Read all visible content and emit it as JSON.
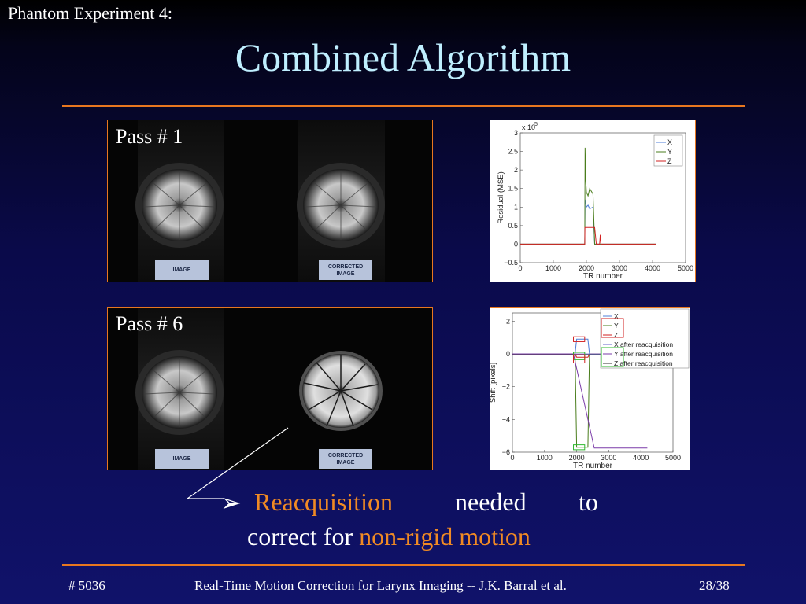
{
  "slide": {
    "subtitle": "Phantom Experiment 4:",
    "title": "Combined Algorithm",
    "page": "28/38",
    "id": "# 5036",
    "footer": "Real-Time Motion Correction for Larynx Imaging -- J.K. Barral et al."
  },
  "panels": [
    {
      "label": "Pass # 1",
      "tag_left": "IMAGE",
      "tag_right_1": "CORRECTED",
      "tag_right_2": "IMAGE"
    },
    {
      "label": "Pass # 6",
      "tag_left": "IMAGE",
      "tag_right_1": "CORRECTED",
      "tag_right_2": "IMAGE"
    }
  ],
  "bullet": {
    "arrow": "➢",
    "highlight1": "Reacquisition",
    "w1": "needed",
    "w2": "to",
    "line2_prefix": "correct for ",
    "highlight2": "non-rigid motion"
  },
  "chart_data": [
    {
      "type": "line",
      "xlabel": "TR number",
      "ylabel": "Residual (MSE)",
      "y_multiplier": "x 10",
      "y_exponent": "5",
      "xlim": [
        0,
        5000
      ],
      "ylim": [
        -0.5,
        3
      ],
      "x_ticks": [
        "0",
        "1000",
        "2000",
        "3000",
        "4000",
        "5000"
      ],
      "y_ticks": [
        "−0.5",
        "0",
        "0.5",
        "1",
        "1.5",
        "2",
        "2.5",
        "3"
      ],
      "legend": [
        "X",
        "Y",
        "Z"
      ],
      "legend_position": "top-right",
      "series": [
        {
          "name": "X",
          "color": "#4f7fd8",
          "x": [
            0,
            1950,
            1960,
            2000,
            2050,
            2100,
            2200,
            2250,
            2300,
            4100
          ],
          "y": [
            0,
            0,
            1.2,
            1.0,
            1.05,
            0.95,
            1.0,
            0,
            0,
            0
          ]
        },
        {
          "name": "Y",
          "color": "#4a7d1c",
          "x": [
            0,
            1950,
            1960,
            1980,
            2000,
            2050,
            2100,
            2200,
            2250,
            2300,
            4100
          ],
          "y": [
            0,
            0,
            2.6,
            1.7,
            1.4,
            1.3,
            1.5,
            1.35,
            0,
            0,
            0
          ]
        },
        {
          "name": "Z",
          "color": "#d22222",
          "x": [
            0,
            1950,
            1955,
            2250,
            2300,
            2400,
            2420,
            2440,
            4100
          ],
          "y": [
            0,
            0,
            0.45,
            0.45,
            0,
            0,
            0.25,
            0,
            0
          ]
        }
      ]
    },
    {
      "type": "line",
      "xlabel": "TR number",
      "ylabel": "Shift [pixels]",
      "xlim": [
        0,
        5000
      ],
      "ylim": [
        -6,
        2.5
      ],
      "x_ticks": [
        "0",
        "1000",
        "2000",
        "3000",
        "4000",
        "5000"
      ],
      "y_ticks": [
        "−6",
        "−4",
        "−2",
        "0",
        "2"
      ],
      "legend": [
        "X",
        "Y",
        "Z",
        "X after reacquisition",
        "Y after reacquisition",
        "Z after reacquisition"
      ],
      "legend_position": "top-right",
      "series": [
        {
          "name": "X",
          "color": "#4f7fd8",
          "x": [
            0,
            1950,
            2000,
            2350,
            2400,
            4200
          ],
          "y": [
            0,
            0,
            0.9,
            0.9,
            0,
            0
          ]
        },
        {
          "name": "Y",
          "color": "#4a7d1c",
          "x": [
            0,
            1950,
            2000,
            2350,
            2400,
            4200
          ],
          "y": [
            0,
            0,
            -5.7,
            -5.7,
            0,
            0
          ]
        },
        {
          "name": "Z",
          "color": "#d22222",
          "x": [
            0,
            1950,
            2000,
            2350,
            2400,
            4200
          ],
          "y": [
            0,
            0,
            -0.2,
            -0.2,
            0,
            0
          ]
        },
        {
          "name": "X after reacquisition",
          "color": "#6666cc",
          "x": [
            0,
            4200
          ],
          "y": [
            0,
            0
          ]
        },
        {
          "name": "Y after reacquisition",
          "color": "#7a3aa8",
          "x": [
            0,
            1900,
            2550,
            4200
          ],
          "y": [
            0,
            0,
            -5.75,
            -5.75
          ]
        },
        {
          "name": "Z after reacquisition",
          "color": "#333333",
          "x": [
            0,
            4200
          ],
          "y": [
            -0.05,
            -0.05
          ]
        }
      ]
    }
  ]
}
